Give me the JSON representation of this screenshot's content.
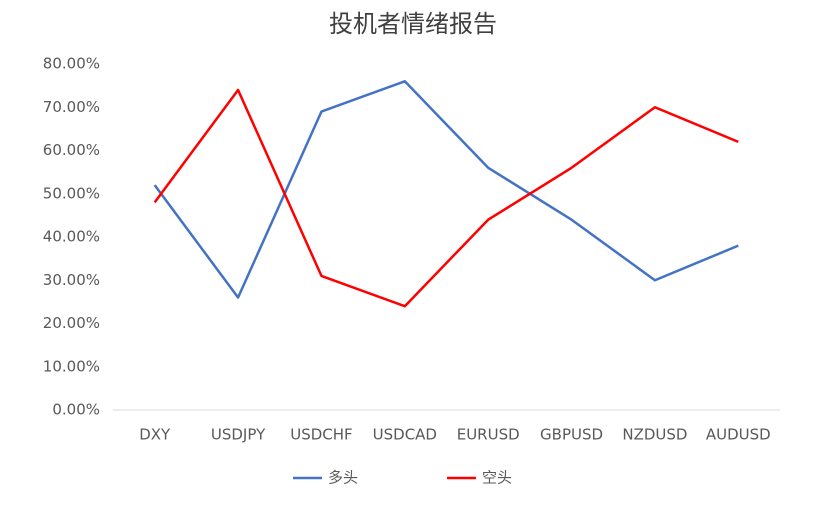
{
  "chart_data": {
    "type": "line",
    "title": "投机者情绪报告",
    "categories": [
      "DXY",
      "USDJPY",
      "USDCHF",
      "USDCAD",
      "EURUSD",
      "GBPUSD",
      "NZDUSD",
      "AUDUSD"
    ],
    "series": [
      {
        "name": "多头",
        "color": "#4472c4",
        "values": [
          52,
          26,
          69,
          76,
          56,
          44,
          30,
          38
        ]
      },
      {
        "name": "空头",
        "color": "#ff0000",
        "values": [
          48,
          74,
          31,
          24,
          44,
          56,
          70,
          62
        ]
      }
    ],
    "ylim": [
      0,
      80
    ],
    "yticks": [
      {
        "value": 0,
        "label": "0.00%"
      },
      {
        "value": 10,
        "label": "10.00%"
      },
      {
        "value": 20,
        "label": "20.00%"
      },
      {
        "value": 30,
        "label": "30.00%"
      },
      {
        "value": 40,
        "label": "40.00%"
      },
      {
        "value": 50,
        "label": "50.00%"
      },
      {
        "value": 60,
        "label": "60.00%"
      },
      {
        "value": 70,
        "label": "70.00%"
      },
      {
        "value": 80,
        "label": "80.00%"
      }
    ],
    "grid": false,
    "legend": "bottom"
  }
}
